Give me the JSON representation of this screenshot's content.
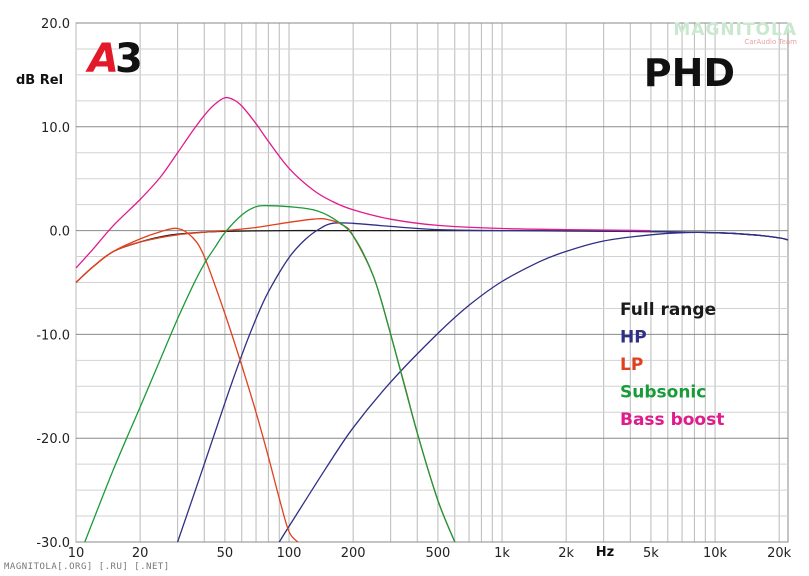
{
  "chart_data": {
    "type": "line",
    "title": "PHD",
    "badge": "A3",
    "ylabel": "dB Rel",
    "xunit": "Hz",
    "xscale": "log",
    "xlim": [
      10,
      22000
    ],
    "ylim": [
      -30,
      20
    ],
    "grid": true,
    "legend_position": "right",
    "x_ticks": [
      {
        "value": 10,
        "label": "10"
      },
      {
        "value": 20,
        "label": "20"
      },
      {
        "value": 50,
        "label": "50"
      },
      {
        "value": 100,
        "label": "100"
      },
      {
        "value": 200,
        "label": "200"
      },
      {
        "value": 500,
        "label": "500"
      },
      {
        "value": 1000,
        "label": "1k"
      },
      {
        "value": 2000,
        "label": "2k"
      },
      {
        "value": 5000,
        "label": "5k"
      },
      {
        "value": 10000,
        "label": "10k"
      },
      {
        "value": 20000,
        "label": "20k"
      }
    ],
    "y_ticks": [
      {
        "value": 20,
        "label": "20.0"
      },
      {
        "value": 10,
        "label": "10.0"
      },
      {
        "value": 0,
        "label": "0.0"
      },
      {
        "value": -10,
        "label": "-10.0"
      },
      {
        "value": -20,
        "label": "-20.0"
      },
      {
        "value": -30,
        "label": "-30.0"
      }
    ],
    "series": [
      {
        "name": "Full range",
        "color": "#1a1a1a",
        "x": [
          10,
          12,
          15,
          20,
          25,
          30,
          40,
          50,
          70,
          100,
          150,
          200,
          500,
          1000,
          5000,
          10000,
          15000,
          20000,
          22000
        ],
        "y": [
          -5,
          -3.5,
          -2,
          -1.1,
          -0.6,
          -0.35,
          -0.15,
          -0.08,
          -0.03,
          0,
          0,
          0,
          0,
          0,
          -0.1,
          -0.2,
          -0.4,
          -0.7,
          -0.9
        ]
      },
      {
        "name": "HP",
        "color": "#2e2f85",
        "x": [
          30,
          40,
          50,
          60,
          70,
          80,
          100,
          120,
          140,
          160,
          200,
          300,
          500,
          1000,
          2000,
          5000,
          10000,
          15000,
          20000,
          22000
        ],
        "y": [
          -30,
          -22.5,
          -16.6,
          -12,
          -8.5,
          -5.9,
          -2.6,
          -0.8,
          0.2,
          0.7,
          0.7,
          0.4,
          0.1,
          0,
          0,
          -0.1,
          -0.2,
          -0.4,
          -0.7,
          -0.9
        ]
      },
      {
        "name": "HP",
        "color": "#2e2f85",
        "x": [
          90,
          100,
          150,
          200,
          300,
          500,
          700,
          1000,
          1500,
          2000,
          3000,
          5000,
          7000,
          10000,
          15000,
          20000,
          22000
        ],
        "y": [
          -30,
          -28.5,
          -22.8,
          -19,
          -14.6,
          -9.9,
          -7.2,
          -4.9,
          -3,
          -2,
          -1,
          -0.4,
          -0.2,
          -0.2,
          -0.4,
          -0.7,
          -0.9
        ]
      },
      {
        "name": "LP",
        "color": "#e0401e",
        "x": [
          10,
          12,
          15,
          20,
          25,
          30,
          35,
          40,
          50,
          60,
          70,
          80,
          90,
          100,
          110
        ],
        "y": [
          -5,
          -3.5,
          -2,
          -0.8,
          -0.1,
          0.2,
          -0.6,
          -2.5,
          -8,
          -13,
          -17.5,
          -21.8,
          -25.8,
          -29,
          -30
        ]
      },
      {
        "name": "LP",
        "color": "#e0401e",
        "x": [
          10,
          12,
          15,
          20,
          30,
          50,
          70,
          100,
          130,
          150,
          180,
          200,
          250,
          300,
          350,
          400,
          500,
          600
        ],
        "y": [
          -5,
          -3.5,
          -2,
          -1.1,
          -0.4,
          0,
          0.3,
          0.8,
          1.1,
          1.1,
          0.5,
          -0.5,
          -4.5,
          -10,
          -15,
          -19.5,
          -26,
          -30
        ]
      },
      {
        "name": "Subsonic",
        "color": "#1a9b3a",
        "x": [
          11,
          15,
          20,
          25,
          30,
          35,
          40,
          45,
          50,
          60,
          70,
          80,
          100,
          130,
          160,
          200,
          250,
          300,
          400,
          500,
          600
        ],
        "y": [
          -30,
          -23,
          -17,
          -12.3,
          -8.5,
          -5.5,
          -3.2,
          -1.6,
          -0.2,
          1.5,
          2.3,
          2.4,
          2.3,
          2,
          1.2,
          -0.5,
          -4.5,
          -10,
          -19.5,
          -26,
          -30
        ]
      },
      {
        "name": "Bass boost",
        "color": "#e01c8c",
        "x": [
          10,
          12,
          15,
          20,
          25,
          30,
          35,
          40,
          45,
          50,
          55,
          60,
          70,
          80,
          100,
          130,
          160,
          200,
          300,
          500,
          1000,
          2000,
          5000
        ],
        "y": [
          -3.6,
          -1.8,
          0.5,
          3,
          5.2,
          7.5,
          9.5,
          11.1,
          12.2,
          12.8,
          12.6,
          12,
          10.3,
          8.6,
          6,
          3.9,
          2.8,
          2,
          1.1,
          0.5,
          0.2,
          0.1,
          0
        ]
      }
    ],
    "legend": [
      {
        "label": "Full range",
        "color": "#1a1a1a"
      },
      {
        "label": "HP",
        "color": "#2e2f85"
      },
      {
        "label": "LP",
        "color": "#e0401e"
      },
      {
        "label": "Subsonic",
        "color": "#1a9b3a"
      },
      {
        "label": "Bass boost",
        "color": "#e01c8c"
      }
    ]
  },
  "corner_logo": {
    "name": "MAGNITOLA",
    "sub": "CarAudio Team"
  },
  "watermark": "MAGNITOLA[.ORG] [.RU] [.NET]"
}
